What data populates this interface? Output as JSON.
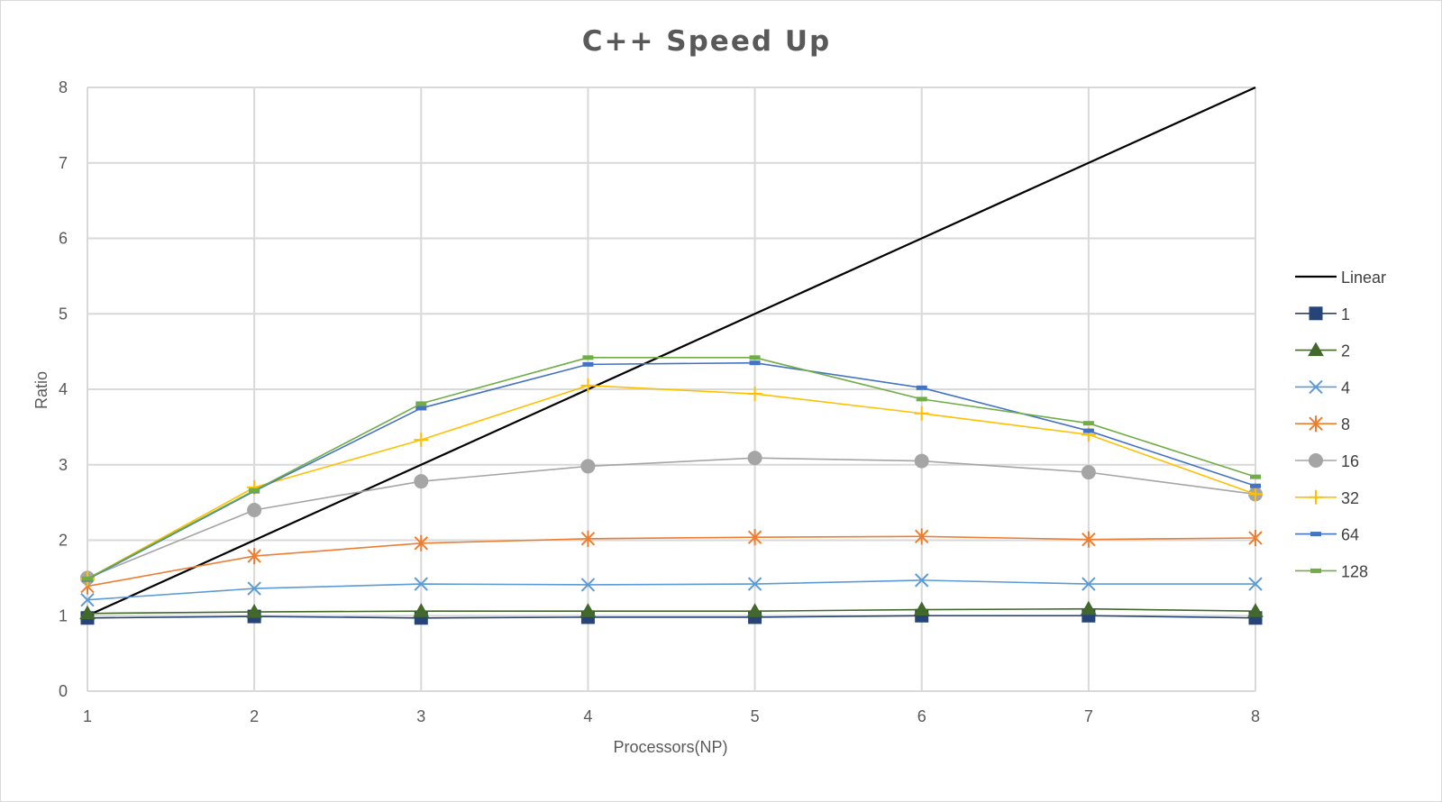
{
  "chart_data": {
    "type": "line",
    "title": "C++ Speed Up",
    "xlabel": "Processors(NP)",
    "ylabel": "Ratio",
    "x": [
      1,
      2,
      3,
      4,
      5,
      6,
      7,
      8
    ],
    "xlim": [
      1,
      8
    ],
    "ylim": [
      0,
      8
    ],
    "yticks": [
      0,
      1,
      2,
      3,
      4,
      5,
      6,
      7,
      8
    ],
    "xticks": [
      1,
      2,
      3,
      4,
      5,
      6,
      7,
      8
    ],
    "grid": true,
    "legend_position": "right",
    "series": [
      {
        "name": "Linear",
        "color": "#000000",
        "marker": "none",
        "values": [
          1,
          2,
          3,
          4,
          5,
          6,
          7,
          8
        ]
      },
      {
        "name": "1",
        "color": "#264478",
        "marker": "square",
        "values": [
          0.97,
          0.99,
          0.97,
          0.98,
          0.98,
          1.0,
          1.0,
          0.97
        ]
      },
      {
        "name": "2",
        "color": "#43682b",
        "marker": "triangle",
        "values": [
          1.03,
          1.05,
          1.06,
          1.06,
          1.06,
          1.08,
          1.09,
          1.06
        ]
      },
      {
        "name": "4",
        "color": "#5b9bd5",
        "marker": "x",
        "values": [
          1.21,
          1.36,
          1.42,
          1.41,
          1.42,
          1.47,
          1.42,
          1.42
        ]
      },
      {
        "name": "8",
        "color": "#ed7d31",
        "marker": "star",
        "values": [
          1.39,
          1.79,
          1.96,
          2.02,
          2.04,
          2.05,
          2.01,
          2.03
        ]
      },
      {
        "name": "16",
        "color": "#a5a5a5",
        "marker": "circle",
        "values": [
          1.5,
          2.4,
          2.78,
          2.98,
          3.09,
          3.05,
          2.9,
          2.61
        ]
      },
      {
        "name": "32",
        "color": "#ffc000",
        "marker": "plus",
        "values": [
          1.49,
          2.7,
          3.33,
          4.05,
          3.94,
          3.68,
          3.4,
          2.61
        ]
      },
      {
        "name": "64",
        "color": "#4472c4",
        "marker": "dash",
        "values": [
          1.48,
          2.65,
          3.75,
          4.33,
          4.35,
          4.02,
          3.45,
          2.72
        ]
      },
      {
        "name": "128",
        "color": "#70ad47",
        "marker": "dash",
        "values": [
          1.49,
          2.66,
          3.81,
          4.42,
          4.42,
          3.87,
          3.55,
          2.84
        ]
      }
    ]
  }
}
